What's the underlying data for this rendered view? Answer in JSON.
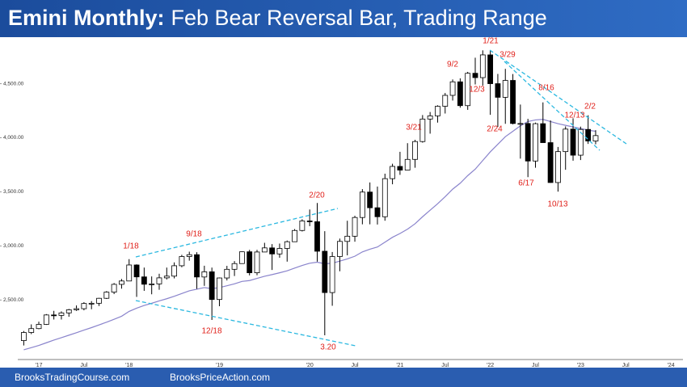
{
  "chart_data": {
    "type": "candlestick",
    "title_prefix": "Emini Monthly:",
    "title": "Feb Bear Reversal Bar, Trading Range",
    "categories": [
      null,
      null,
      "'17",
      null,
      null,
      null,
      null,
      null,
      "Jul",
      null,
      null,
      null,
      null,
      null,
      "'18",
      null,
      null,
      null,
      null,
      null,
      null,
      null,
      null,
      null,
      null,
      null,
      "'19",
      null,
      null,
      null,
      null,
      null,
      null,
      null,
      null,
      null,
      null,
      null,
      "'20",
      null,
      null,
      null,
      null,
      null,
      "Jul",
      null,
      null,
      null,
      null,
      null,
      "'21",
      null,
      null,
      null,
      null,
      null,
      "Jul",
      null,
      null,
      null,
      null,
      null,
      "'22",
      null,
      null,
      null,
      null,
      null,
      "Jul",
      null,
      null,
      null,
      null,
      null,
      "'23",
      null,
      null,
      null,
      null,
      null,
      "Jul",
      null,
      null,
      null,
      null,
      null,
      "'24"
    ],
    "open": [
      2125,
      2200,
      2236,
      2275,
      2362,
      2358,
      2381,
      2410,
      2420,
      2468,
      2470,
      2516,
      2573,
      2645,
      2676,
      2824,
      2714,
      2646,
      2649,
      2705,
      2721,
      2817,
      2902,
      2919,
      2713,
      2761,
      2505,
      2704,
      2784,
      2837,
      2946,
      2752,
      2944,
      2982,
      2926,
      2977,
      3039,
      3143,
      3231,
      3224,
      2951,
      2569,
      2902,
      3042,
      3090,
      3263,
      3498,
      3353,
      3270,
      3622,
      3735,
      3701,
      3800,
      3965,
      4173,
      4202,
      4291,
      4392,
      4517,
      4297,
      4596,
      4556,
      4766,
      4500,
      4374,
      4530,
      4132,
      4132,
      3785,
      4130,
      3955,
      3586,
      3872,
      4080,
      3839,
      4077,
      3970,
      null,
      null,
      null,
      null,
      null,
      null,
      null,
      null,
      null,
      null
    ],
    "high": [
      2214,
      2275,
      2300,
      2370,
      2400,
      2395,
      2418,
      2450,
      2480,
      2490,
      2520,
      2582,
      2657,
      2695,
      2878,
      2830,
      2800,
      2718,
      2743,
      2800,
      2848,
      2918,
      2947,
      2942,
      2817,
      2800,
      2708,
      2816,
      2860,
      2949,
      2964,
      2964,
      3029,
      3017,
      3022,
      3050,
      3156,
      3247,
      3337,
      3397,
      3137,
      2944,
      3068,
      3233,
      3279,
      3525,
      3587,
      3549,
      3668,
      3760,
      3870,
      3950,
      3981,
      4210,
      4238,
      4300,
      4414,
      4539,
      4549,
      4609,
      4740,
      4808,
      4808,
      4590,
      4637,
      4589,
      4307,
      4175,
      4140,
      4327,
      4160,
      3915,
      4105,
      4180,
      4103,
      4208,
      4070,
      null,
      null,
      null,
      null,
      null,
      null,
      null,
      null,
      null,
      null
    ],
    "low": [
      2080,
      2185,
      2230,
      2270,
      2320,
      2320,
      2345,
      2400,
      2405,
      2415,
      2445,
      2510,
      2555,
      2605,
      2675,
      2529,
      2585,
      2553,
      2595,
      2690,
      2700,
      2803,
      2864,
      2603,
      2631,
      2316,
      2443,
      2681,
      2722,
      2836,
      2728,
      2729,
      2952,
      2778,
      2891,
      2855,
      3037,
      3134,
      3183,
      2855,
      2174,
      2447,
      2766,
      2913,
      3039,
      3200,
      3200,
      3198,
      3233,
      3570,
      3657,
      3700,
      3723,
      3955,
      4038,
      4140,
      4224,
      4344,
      4278,
      4258,
      4493,
      4482,
      4212,
      4101,
      4129,
      4124,
      3807,
      3636,
      3723,
      3954,
      3584,
      3502,
      3704,
      3788,
      3794,
      3943,
      3940,
      null,
      null,
      null,
      null,
      null,
      null,
      null,
      null,
      null,
      null
    ],
    "close": [
      2200,
      2236,
      2275,
      2362,
      2358,
      2381,
      2410,
      2420,
      2468,
      2470,
      2516,
      2573,
      2645,
      2676,
      2824,
      2714,
      2646,
      2649,
      2705,
      2721,
      2817,
      2902,
      2919,
      2713,
      2761,
      2505,
      2704,
      2784,
      2837,
      2946,
      2752,
      2944,
      2982,
      2926,
      2977,
      3039,
      3143,
      3231,
      3224,
      2951,
      2569,
      2902,
      3042,
      3090,
      3263,
      3498,
      3353,
      3270,
      3622,
      3735,
      3701,
      3800,
      3965,
      4173,
      4202,
      4291,
      4392,
      4517,
      4297,
      4596,
      4556,
      4766,
      4500,
      4374,
      4530,
      4132,
      4132,
      3785,
      4130,
      3955,
      3586,
      3872,
      4080,
      3839,
      4077,
      3970,
      4020,
      null,
      null,
      null,
      null,
      null,
      null,
      null,
      null,
      null,
      null
    ],
    "up_color": "#ffffff",
    "down_color": "#000000",
    "moving_average": {
      "color": "#8a84cc",
      "values": [
        2040,
        2060,
        2080,
        2105,
        2130,
        2152,
        2175,
        2198,
        2222,
        2245,
        2270,
        2295,
        2322,
        2350,
        2395,
        2425,
        2450,
        2470,
        2492,
        2512,
        2535,
        2560,
        2585,
        2600,
        2615,
        2605,
        2615,
        2632,
        2650,
        2672,
        2680,
        2700,
        2720,
        2735,
        2752,
        2770,
        2795,
        2820,
        2840,
        2850,
        2835,
        2840,
        2860,
        2880,
        2905,
        2945,
        2970,
        2990,
        3035,
        3080,
        3115,
        3155,
        3205,
        3270,
        3330,
        3390,
        3455,
        3525,
        3580,
        3650,
        3710,
        3790,
        3870,
        3940,
        4010,
        4060,
        4110,
        4150,
        4165,
        4170,
        4150,
        4130,
        4115,
        4100,
        4085,
        4070,
        4060,
        null,
        null,
        null,
        null,
        null,
        null,
        null,
        null,
        null,
        null
      ]
    },
    "ylim": [
      1950,
      4900
    ],
    "yticks": [
      {
        "value": 2500,
        "label": "2,500.00"
      },
      {
        "value": 3000,
        "label": "3,000.00"
      },
      {
        "value": 3500,
        "label": "3,500.00"
      },
      {
        "value": 4000,
        "label": "4,000.00"
      },
      {
        "value": 4500,
        "label": "4,500.00"
      }
    ],
    "annotations": [
      "1/18",
      "9/18",
      "2/20",
      "12/18",
      "3.20",
      "3/21",
      "9/2",
      "12/3",
      "1/21",
      "3/29",
      "2/24",
      "8/16",
      "12/13",
      "2/2",
      "6/17",
      "10/13"
    ]
  },
  "footer": [
    "BrooksTradingCourse.com",
    "BrooksPriceAction.com"
  ]
}
